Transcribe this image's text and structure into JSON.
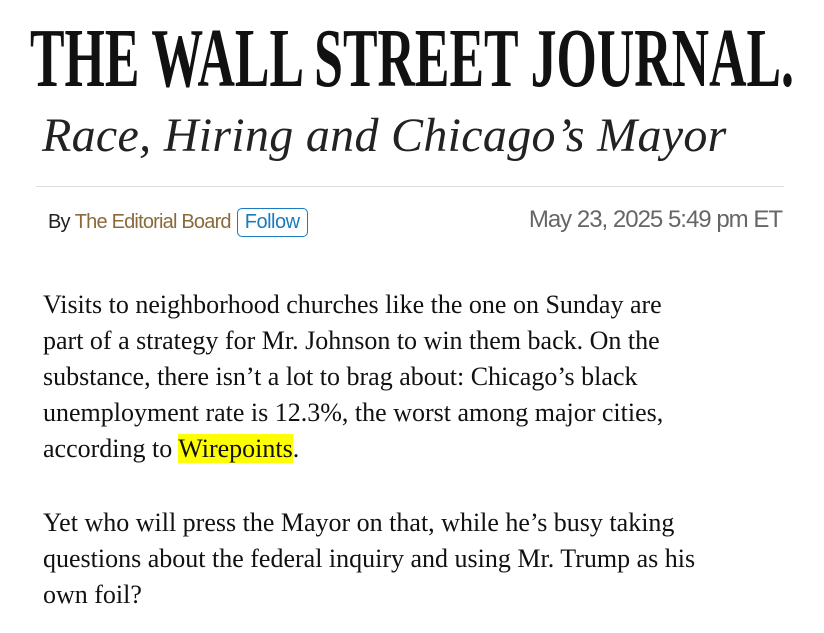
{
  "masthead": "THE WALL STREET JOURNAL.",
  "headline": "Race, Hiring and Chicago’s Mayor",
  "byline": {
    "by": "By",
    "author": "The Editorial Board",
    "follow_label": "Follow",
    "date": "May 23, 2025 5:49 pm ET"
  },
  "article": {
    "p1_lines": [
      "Visits to neighborhood churches like the one on Sunday are",
      "part of a strategy for Mr. Johnson to win them back. On the",
      "substance, there isn’t a lot to brag about: Chicago’s black",
      "unemployment rate is 12.3%, the worst among major cities,"
    ],
    "p1_last_prefix": "according to ",
    "p1_link": "Wirepoints",
    "p1_last_suffix": ".",
    "p2_lines": [
      "Yet who will press the Mayor on that, while he’s busy taking",
      "questions about the federal inquiry and using Mr. Trump as his",
      "own foil?"
    ]
  },
  "colors": {
    "author": "#8a6a3c",
    "follow": "#1a7bbf",
    "highlight": "#ffff00",
    "date": "#666666"
  }
}
